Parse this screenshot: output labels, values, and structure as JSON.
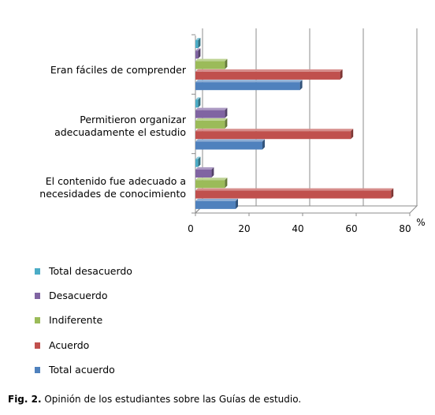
{
  "chart_data": {
    "type": "bar",
    "orientation": "horizontal",
    "three_d": true,
    "categories": [
      [
        "Eran fáciles de comprender"
      ],
      [
        "Permitieron organizar",
        "adecuadamente el estudio"
      ],
      [
        "El contenido fue adecuado a",
        "necesidades de conocimiento"
      ]
    ],
    "series": [
      {
        "name": "Total desacuerdo",
        "color": "#4bacc6",
        "values": [
          1,
          1,
          1
        ]
      },
      {
        "name": "Desacuerdo",
        "color": "#8064a2",
        "values": [
          1,
          11,
          6
        ]
      },
      {
        "name": "Indiferente",
        "color": "#9bbb59",
        "values": [
          11,
          11,
          11
        ]
      },
      {
        "name": "Acuerdo",
        "color": "#c0504d",
        "values": [
          54,
          58,
          73
        ]
      },
      {
        "name": "Total acuerdo",
        "color": "#4f81bd",
        "values": [
          39,
          25,
          15
        ]
      }
    ],
    "xlim": [
      0,
      80
    ],
    "xticks": [
      "0",
      "20",
      "40",
      "60",
      "80"
    ],
    "xunit": "%",
    "grid": true,
    "legend_position": "bottom"
  },
  "caption": {
    "prefix": "Fig. 2.",
    "text": " Opinión de los estudiantes sobre las Guías de estudio."
  }
}
